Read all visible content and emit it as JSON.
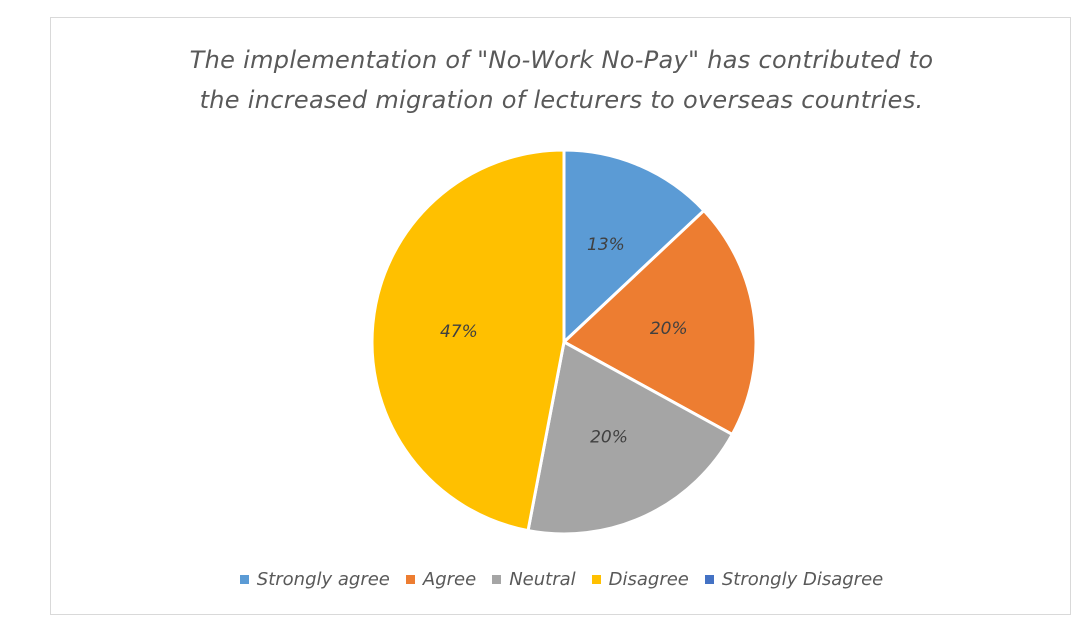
{
  "chart_data": {
    "type": "pie",
    "title_lines": [
      "The implementation of \"No-Work No-Pay\" has contributed to",
      "the increased migration of lecturers to overseas countries."
    ],
    "categories": [
      "Strongly agree",
      "Agree",
      "Neutral",
      "Disagree",
      "Strongly Disagree"
    ],
    "values": [
      13,
      20,
      20,
      47,
      0
    ],
    "labels": [
      "13%",
      "20%",
      "20%",
      "47%",
      ""
    ],
    "colors": [
      "#5b9bd5",
      "#ed7d31",
      "#a5a5a5",
      "#ffc000",
      "#4472c4"
    ],
    "legend_position": "bottom"
  }
}
